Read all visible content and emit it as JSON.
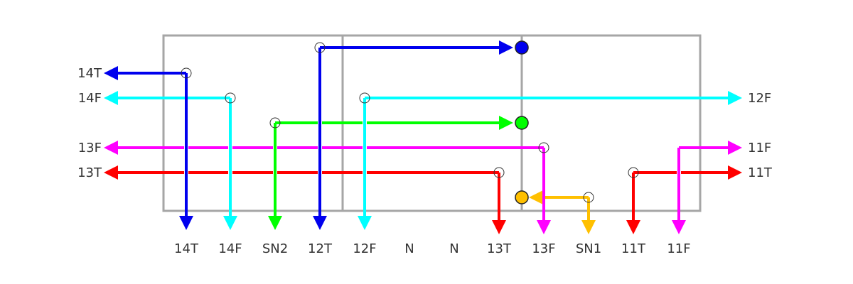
{
  "bottom_labels": [
    "14T",
    "14F",
    "SN2",
    "12T",
    "12F",
    "N",
    "N",
    "13T",
    "13F",
    "SN1",
    "11T",
    "11F"
  ],
  "left_labels": [
    "14T",
    "14F",
    "13F",
    "13T"
  ],
  "right_labels": [
    "12F",
    "11F",
    "11T"
  ]
}
